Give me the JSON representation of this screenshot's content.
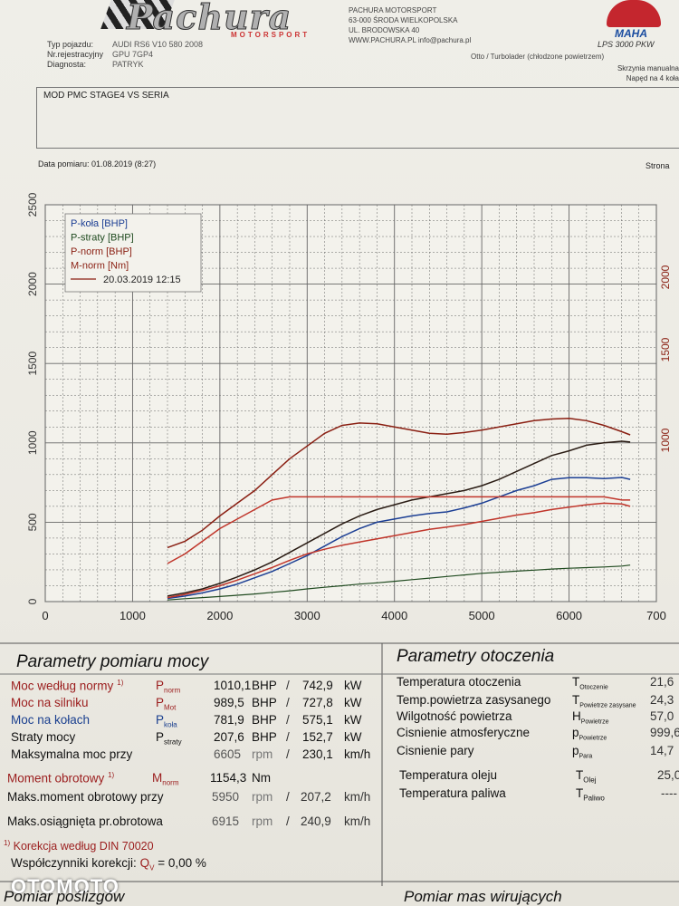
{
  "header": {
    "logo_text": "Pachura",
    "logo_sub": "MOTORSPORT",
    "address": [
      "PACHURA MOTORSPORT",
      "63-000 ŚRODA WIELKOPOLSKA",
      "UL. BRODOWSKA 40",
      "WWW.PACHURA.PL info@pachura.pl"
    ],
    "brand": "MAHA",
    "model": "LPS 3000 PKW",
    "vehicle": [
      {
        "label": "Typ pojazdu:",
        "value": "AUDI RS6 V10 580 2008"
      },
      {
        "label": "Nr.rejestracyjny",
        "value": "GPU 7GP4"
      },
      {
        "label": "Diagnosta:",
        "value": "PATRYK"
      }
    ],
    "engine_type": "Otto / Turbolader (chłodzone powietrzem)",
    "gearbox": "Skrzynia manualna",
    "drive": "Napęd na 4 koła",
    "description": "MOD PMC STAGE4 VS SERIA",
    "date_label": "Data pomiaru: 01.08.2019 (8:27)",
    "page_label": "Strona"
  },
  "chart_data": {
    "type": "line",
    "x": [
      1400,
      1600,
      1800,
      2000,
      2200,
      2400,
      2600,
      2800,
      3000,
      3200,
      3400,
      3600,
      3800,
      4000,
      4200,
      4400,
      4600,
      4800,
      5000,
      5200,
      5400,
      5600,
      5800,
      6000,
      6200,
      6400,
      6605,
      6700
    ],
    "xlim": [
      0,
      7000
    ],
    "x_ticks": [
      "0",
      "1000",
      "2000",
      "3000",
      "4000",
      "5000",
      "6000",
      "700"
    ],
    "y_left_lim": [
      0,
      2500
    ],
    "y_left_ticks": [
      "0",
      "500",
      "1000",
      "1500",
      "2000",
      "2500"
    ],
    "y_right_ticks": [
      "1000",
      "1500",
      "2000"
    ],
    "series": [
      {
        "name": "P-koła [BHP]",
        "color": "#1c3f94",
        "values": [
          20,
          35,
          55,
          80,
          110,
          150,
          190,
          240,
          290,
          350,
          410,
          460,
          500,
          520,
          540,
          555,
          565,
          590,
          620,
          660,
          700,
          730,
          770,
          780,
          780,
          775,
          782,
          770
        ]
      },
      {
        "name": "P-straty [BHP]",
        "color": "#1f4a1f",
        "values": [
          10,
          18,
          25,
          32,
          40,
          48,
          58,
          68,
          80,
          90,
          100,
          110,
          118,
          128,
          138,
          148,
          158,
          168,
          178,
          185,
          192,
          198,
          205,
          210,
          214,
          218,
          224,
          230
        ]
      },
      {
        "name": "P-norm [BHP]",
        "color": "#2a1c14",
        "values": [
          35,
          55,
          80,
          115,
          155,
          200,
          250,
          310,
          370,
          430,
          490,
          540,
          580,
          610,
          640,
          660,
          680,
          700,
          730,
          770,
          820,
          870,
          920,
          950,
          985,
          1000,
          1010,
          1005
        ]
      },
      {
        "name": "M-norm [Nm]",
        "color": "#8a1f12",
        "values": [
          340,
          380,
          450,
          540,
          620,
          700,
          800,
          900,
          980,
          1060,
          1110,
          1125,
          1120,
          1100,
          1080,
          1060,
          1055,
          1065,
          1080,
          1100,
          1120,
          1140,
          1150,
          1154,
          1140,
          1110,
          1070,
          1050
        ]
      },
      {
        "name": "20.03.2019 12:15",
        "color": "#c0352a",
        "values": [
          240,
          300,
          380,
          460,
          520,
          580,
          640,
          660,
          660,
          660,
          660,
          660,
          660,
          660,
          660,
          660,
          660,
          660,
          660,
          660,
          660,
          660,
          660,
          660,
          660,
          660,
          640,
          640
        ]
      },
      {
        "name": "20.03.2019 12:15 P",
        "color": "#c0352a",
        "values": [
          25,
          45,
          70,
          100,
          135,
          175,
          215,
          260,
          300,
          330,
          355,
          375,
          395,
          415,
          435,
          455,
          470,
          485,
          505,
          525,
          545,
          560,
          580,
          595,
          610,
          620,
          615,
          600
        ]
      }
    ],
    "legend": [
      "P-koła [BHP]",
      "P-straty [BHP]",
      "P-norm [BHP]",
      "M-norm [Nm]",
      "20.03.2019 12:15"
    ],
    "legend_colors": [
      "#1c3f94",
      "#1f4a1f",
      "#8a1f12",
      "#8a1f12",
      "#8a1f12"
    ],
    "grid": true,
    "legend_position": "top-left"
  },
  "power": {
    "title": "Parametry pomiaru mocy",
    "rows": [
      {
        "label": "Moc według normy",
        "note": "1)",
        "symbol": "P",
        "sub": "norm",
        "v1": "1010,1",
        "u1": "BHP",
        "v2": "742,9",
        "u2": "kW",
        "color": "red"
      },
      {
        "label": "Moc na silniku",
        "note": "",
        "symbol": "P",
        "sub": "Mot",
        "v1": "989,5",
        "u1": "BHP",
        "v2": "727,8",
        "u2": "kW",
        "color": "red"
      },
      {
        "label": "Moc na kołach",
        "note": "",
        "symbol": "P",
        "sub": "koła",
        "v1": "781,9",
        "u1": "BHP",
        "v2": "575,1",
        "u2": "kW",
        "color": "blue"
      },
      {
        "label": "Straty mocy",
        "note": "",
        "symbol": "P",
        "sub": "straty",
        "v1": "207,6",
        "u1": "BHP",
        "v2": "152,7",
        "u2": "kW",
        "color": "black"
      },
      {
        "label": "Maksymalna moc przy",
        "note": "",
        "symbol": "",
        "sub": "",
        "v1": "6605",
        "u1": "rpm",
        "v2": "230,1",
        "u2": "km/h",
        "color": "black"
      }
    ],
    "torque_label": "Moment obrotowy",
    "torque_note": "1)",
    "torque_symbol": "M",
    "torque_sub": "norm",
    "torque_value": "1154,3",
    "torque_unit": "Nm",
    "torque_rpm_label": "Maks.moment obrotowy przy",
    "torque_rpm": "5950",
    "torque_speed": "207,2",
    "max_rpm_label": "Maks.osiągnięta pr.obrotowa",
    "max_rpm": "6915",
    "max_speed": "240,9",
    "rpm_unit": "rpm",
    "speed_unit": "km/h",
    "correction_note": "1)",
    "correction": "Korekcja według DIN 70020",
    "coef_label": "Współczynniki korekcji:",
    "coef_symbol": "Q",
    "coef_sub": "V",
    "coef_value": "=     0,00 %"
  },
  "env": {
    "title": "Parametry otoczenia",
    "rows": [
      {
        "label": "Temperatura otoczenia",
        "symbol": "T",
        "sub": "Otoczenie",
        "value": "21,6"
      },
      {
        "label": "Temp.powietrza zasysanego",
        "symbol": "T",
        "sub": "Powietrze zasysane",
        "value": "24,3"
      },
      {
        "label": "Wilgotność powietrza",
        "symbol": "H",
        "sub": "Powietrze",
        "value": "57,0"
      },
      {
        "label": "Cisnienie atmosferyczne",
        "symbol": "p",
        "sub": "Powietrze",
        "value": "999,6"
      },
      {
        "label": "Cisnienie pary",
        "symbol": "p",
        "sub": "Para",
        "value": "14,7"
      }
    ],
    "oil_label": "Temperatura oleju",
    "oil_symbol": "T",
    "oil_sub": "Olej",
    "oil_value": "25,0",
    "fuel_label": "Temperatura paliwa",
    "fuel_symbol": "T",
    "fuel_sub": "Paliwo",
    "fuel_value": "----"
  },
  "footer": {
    "watermark": "OTOMOTO",
    "left_title": "Pomiar poślizgów",
    "right_title": "Pomiar mas wirujących"
  }
}
